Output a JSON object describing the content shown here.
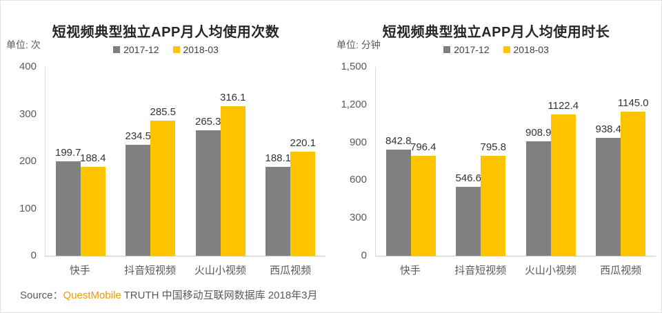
{
  "chart_data": [
    {
      "type": "bar",
      "title": "短视频典型独立APP月人均使用次数",
      "unit_label": "单位: 次",
      "categories": [
        "快手",
        "抖音短视频",
        "火山小视频",
        "西瓜视频"
      ],
      "series": [
        {
          "name": "2017-12",
          "color": "#808080",
          "values": [
            199.7,
            234.5,
            265.3,
            188.1
          ]
        },
        {
          "name": "2018-03",
          "color": "#FFC400",
          "values": [
            188.4,
            285.5,
            316.1,
            220.1
          ]
        }
      ],
      "ylim": [
        0,
        400
      ],
      "yticks": [
        0,
        100,
        200,
        300,
        400
      ],
      "grid": false,
      "legend_position": "top",
      "value_labels": true
    },
    {
      "type": "bar",
      "title": "短视频典型独立APP月人均使用时长",
      "unit_label": "单位: 分钟",
      "categories": [
        "快手",
        "抖音短视频",
        "火山小视频",
        "西瓜视频"
      ],
      "series": [
        {
          "name": "2017-12",
          "color": "#808080",
          "values": [
            842.8,
            546.6,
            908.9,
            938.4
          ]
        },
        {
          "name": "2018-03",
          "color": "#FFC400",
          "values": [
            796.4,
            795.8,
            1122.4,
            1145.0
          ]
        }
      ],
      "ylim": [
        0,
        1500
      ],
      "yticks": [
        0,
        300,
        600,
        900,
        1200,
        1500
      ],
      "grid": false,
      "legend_position": "top",
      "value_labels": true
    }
  ],
  "source": {
    "prefix": "Source：",
    "brand": "QuestMobile",
    "brand_color": "#F39800",
    "suffix": " TRUTH 中国移动互联网数据库 2018年3月"
  },
  "colors": {
    "series_2017_12": "#808080",
    "series_2018_03": "#FFC400",
    "axis_line": "#d9d9d9",
    "text_primary": "#262626",
    "text_secondary": "#595959"
  }
}
